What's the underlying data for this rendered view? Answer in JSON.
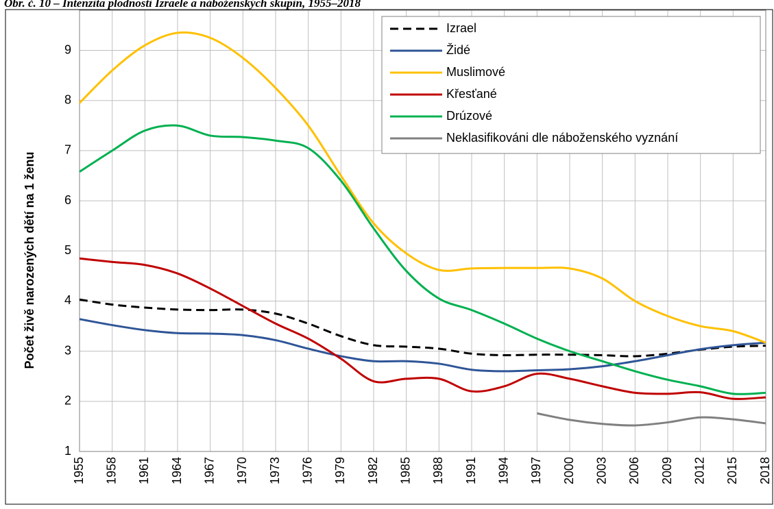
{
  "chart_data": {
    "type": "line",
    "title": "Obr. č. 10 – Intenzita plodnosti Izraele a náboženských skupin, 1955–2018",
    "ylabel": "Počet živě narozených dětí na 1 ženu",
    "x": [
      1955,
      1958,
      1961,
      1964,
      1967,
      1970,
      1973,
      1976,
      1979,
      1982,
      1985,
      1988,
      1991,
      1994,
      1997,
      2000,
      2003,
      2006,
      2009,
      2012,
      2015,
      2018
    ],
    "xlim": [
      1955,
      2018
    ],
    "xticks": [
      1955,
      1958,
      1961,
      1964,
      1967,
      1970,
      1973,
      1976,
      1979,
      1982,
      1985,
      1988,
      1991,
      1994,
      1997,
      2000,
      2003,
      2006,
      2009,
      2012,
      2015,
      2018
    ],
    "ylim": [
      1,
      9.8
    ],
    "yticks": [
      1,
      2,
      3,
      4,
      5,
      6,
      7,
      8,
      9
    ],
    "grid": true,
    "legend": "upper right",
    "series": [
      {
        "name": "Izrael",
        "color": "#000000",
        "dash": true,
        "values": [
          4.03,
          3.93,
          3.87,
          3.83,
          3.82,
          3.83,
          3.75,
          3.55,
          3.3,
          3.12,
          3.09,
          3.05,
          2.95,
          2.92,
          2.93,
          2.93,
          2.92,
          2.9,
          2.95,
          3.03,
          3.09,
          3.11
        ]
      },
      {
        "name": "Židé",
        "color": "#2f5597",
        "values": [
          3.64,
          3.52,
          3.42,
          3.36,
          3.35,
          3.32,
          3.22,
          3.05,
          2.9,
          2.8,
          2.8,
          2.75,
          2.63,
          2.6,
          2.62,
          2.64,
          2.7,
          2.8,
          2.92,
          3.04,
          3.12,
          3.17
        ]
      },
      {
        "name": "Muslimové",
        "color": "#ffc000",
        "values": [
          7.95,
          8.6,
          9.1,
          9.35,
          9.25,
          8.85,
          8.25,
          7.5,
          6.5,
          5.55,
          4.95,
          4.62,
          4.65,
          4.66,
          4.66,
          4.65,
          4.45,
          4.0,
          3.7,
          3.5,
          3.4,
          3.17
        ]
      },
      {
        "name": "Křesťané",
        "color": "#c00000",
        "values": [
          4.85,
          4.78,
          4.72,
          4.55,
          4.25,
          3.9,
          3.55,
          3.25,
          2.85,
          2.4,
          2.45,
          2.45,
          2.2,
          2.3,
          2.55,
          2.45,
          2.3,
          2.17,
          2.15,
          2.18,
          2.05,
          2.08
        ]
      },
      {
        "name": "Drúzové",
        "color": "#00b050",
        "values": [
          6.58,
          7.0,
          7.4,
          7.5,
          7.3,
          7.27,
          7.2,
          7.05,
          6.4,
          5.45,
          4.6,
          4.05,
          3.82,
          3.55,
          3.25,
          3.0,
          2.8,
          2.6,
          2.43,
          2.3,
          2.15,
          2.17
        ]
      },
      {
        "name": "Neklasifikováni dle náboženského vyznání",
        "color": "#808080",
        "values": [
          null,
          null,
          null,
          null,
          null,
          null,
          null,
          null,
          null,
          null,
          null,
          null,
          null,
          null,
          1.76,
          1.63,
          1.55,
          1.52,
          1.58,
          1.68,
          1.64,
          1.56
        ]
      }
    ]
  }
}
